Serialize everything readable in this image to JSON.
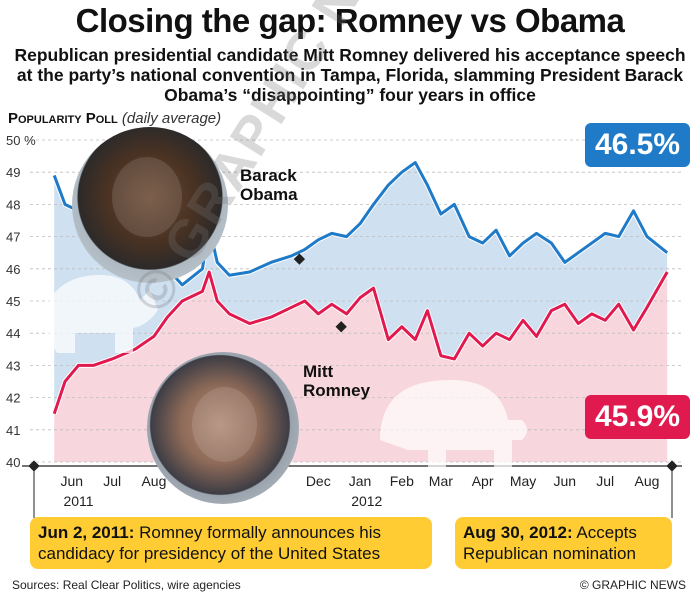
{
  "header": {
    "title": "Closing the gap: Romney vs Obama",
    "subtitle": "Republican presidential candidate Mitt Romney delivered his acceptance speech at the party’s national convention in Tampa, Florida, slamming President Barack Obama’s “disappointing” four years in office",
    "poll_label": "Popularity Poll",
    "poll_sub": "(daily average)"
  },
  "chart_data": {
    "type": "line",
    "title": "Popularity Poll (daily average)",
    "ylabel": "%",
    "ylim": [
      40,
      50
    ],
    "yticks": [
      "50 %",
      "49",
      "48",
      "47",
      "46",
      "45",
      "44",
      "43",
      "42",
      "41",
      "40"
    ],
    "xlabels": [
      "Jun",
      "Jul",
      "Aug",
      "Dec",
      "Jan",
      "Feb",
      "Mar",
      "Apr",
      "May",
      "Jun",
      "Jul",
      "Aug"
    ],
    "year_labels": [
      "2011",
      "2012"
    ],
    "grid": true,
    "series": [
      {
        "name": "Barack Obama",
        "color": "#1f7ac8",
        "final_value": "46.5%",
        "points": [
          [
            "2011-06-02",
            48.9
          ],
          [
            "2011-06-10",
            48.0
          ],
          [
            "2011-06-20",
            47.8
          ],
          [
            "2011-07-01",
            47.6
          ],
          [
            "2011-07-15",
            47.4
          ],
          [
            "2011-08-01",
            47.2
          ],
          [
            "2011-08-15",
            46.6
          ],
          [
            "2011-08-25",
            46.0
          ],
          [
            "2011-09-05",
            45.5
          ],
          [
            "2011-09-20",
            46.0
          ],
          [
            "2011-09-25",
            47.3
          ],
          [
            "2011-10-01",
            46.2
          ],
          [
            "2011-10-10",
            45.8
          ],
          [
            "2011-10-25",
            45.9
          ],
          [
            "2011-11-10",
            46.2
          ],
          [
            "2011-11-25",
            46.4
          ],
          [
            "2011-12-05",
            46.6
          ],
          [
            "2011-12-15",
            46.9
          ],
          [
            "2011-12-25",
            47.1
          ],
          [
            "2012-01-05",
            47.0
          ],
          [
            "2012-01-15",
            47.4
          ],
          [
            "2012-01-25",
            48.0
          ],
          [
            "2012-02-05",
            48.6
          ],
          [
            "2012-02-15",
            49.0
          ],
          [
            "2012-02-25",
            49.3
          ],
          [
            "2012-03-05",
            48.6
          ],
          [
            "2012-03-15",
            47.7
          ],
          [
            "2012-03-25",
            48.0
          ],
          [
            "2012-04-05",
            47.0
          ],
          [
            "2012-04-15",
            46.8
          ],
          [
            "2012-04-25",
            47.2
          ],
          [
            "2012-05-05",
            46.4
          ],
          [
            "2012-05-15",
            46.8
          ],
          [
            "2012-05-25",
            47.1
          ],
          [
            "2012-06-05",
            46.8
          ],
          [
            "2012-06-15",
            46.2
          ],
          [
            "2012-06-25",
            46.5
          ],
          [
            "2012-07-05",
            46.8
          ],
          [
            "2012-07-15",
            47.1
          ],
          [
            "2012-07-25",
            47.0
          ],
          [
            "2012-08-05",
            47.8
          ],
          [
            "2012-08-15",
            47.0
          ],
          [
            "2012-08-30",
            46.5
          ]
        ]
      },
      {
        "name": "Mitt Romney",
        "color": "#e01a4f",
        "final_value": "45.9%",
        "points": [
          [
            "2011-06-02",
            41.5
          ],
          [
            "2011-06-10",
            42.5
          ],
          [
            "2011-06-20",
            43.0
          ],
          [
            "2011-07-01",
            43.0
          ],
          [
            "2011-07-15",
            43.2
          ],
          [
            "2011-08-01",
            43.5
          ],
          [
            "2011-08-15",
            43.9
          ],
          [
            "2011-08-25",
            44.5
          ],
          [
            "2011-09-05",
            45.0
          ],
          [
            "2011-09-20",
            45.3
          ],
          [
            "2011-09-25",
            45.9
          ],
          [
            "2011-10-01",
            45.0
          ],
          [
            "2011-10-10",
            44.6
          ],
          [
            "2011-10-25",
            44.3
          ],
          [
            "2011-11-10",
            44.5
          ],
          [
            "2011-11-25",
            44.8
          ],
          [
            "2011-12-05",
            45.0
          ],
          [
            "2011-12-15",
            44.6
          ],
          [
            "2011-12-25",
            44.9
          ],
          [
            "2012-01-05",
            44.6
          ],
          [
            "2012-01-15",
            45.1
          ],
          [
            "2012-01-25",
            45.4
          ],
          [
            "2012-02-05",
            43.8
          ],
          [
            "2012-02-15",
            44.2
          ],
          [
            "2012-02-25",
            43.8
          ],
          [
            "2012-03-05",
            44.7
          ],
          [
            "2012-03-15",
            43.3
          ],
          [
            "2012-03-25",
            43.2
          ],
          [
            "2012-04-05",
            44.0
          ],
          [
            "2012-04-15",
            43.6
          ],
          [
            "2012-04-25",
            44.0
          ],
          [
            "2012-05-05",
            43.8
          ],
          [
            "2012-05-15",
            44.4
          ],
          [
            "2012-05-25",
            43.9
          ],
          [
            "2012-06-05",
            44.7
          ],
          [
            "2012-06-15",
            44.9
          ],
          [
            "2012-06-25",
            44.3
          ],
          [
            "2012-07-05",
            44.6
          ],
          [
            "2012-07-15",
            44.4
          ],
          [
            "2012-07-25",
            44.9
          ],
          [
            "2012-08-05",
            44.1
          ],
          [
            "2012-08-15",
            44.8
          ],
          [
            "2012-08-30",
            45.9
          ]
        ]
      }
    ],
    "annotations": [
      {
        "date": "2011-06-02",
        "label": "Jun 2, 2011:",
        "text": "Romney formally announces his candidacy for presidency of the United States"
      },
      {
        "date": "2012-08-30",
        "label": "Aug 30, 2012:",
        "text": "Accepts Republican nomination"
      }
    ]
  },
  "labels": {
    "obama": "Barack\nObama",
    "romney": "Mitt\nRomney"
  },
  "footer": {
    "sources": "Sources: Real Clear Politics, wire agencies",
    "credit": "© GRAPHIC NEWS"
  },
  "watermark": "© GRAPHIC NEWS",
  "photos": [
    "obama-photo",
    "romney-photo"
  ]
}
